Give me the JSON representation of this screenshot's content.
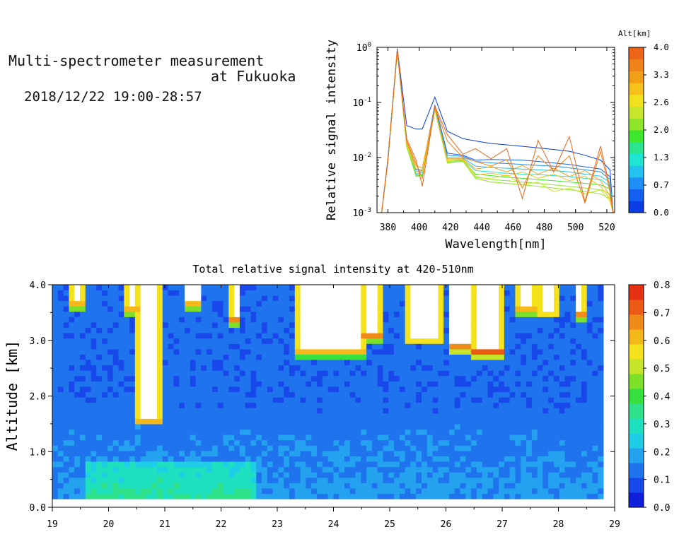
{
  "header": {
    "title_line1": "Multi-spectrometer measurement",
    "title_line2": "at Fukuoka",
    "subtitle": "2018/12/22 19:00-28:57"
  },
  "colors": {
    "alt_scale": [
      "#0a3de6",
      "#1460f0",
      "#1e90f5",
      "#22c3f0",
      "#1fe6d2",
      "#2be68f",
      "#3ee62c",
      "#8fe62a",
      "#c8e62d",
      "#f2e21e",
      "#f5c11a",
      "#f29f18",
      "#f0821a",
      "#ec6418"
    ],
    "intensity_scale": [
      "#1020d8",
      "#1848ea",
      "#1f74ee",
      "#24a2ef",
      "#1ecde6",
      "#1ee0be",
      "#2fe28a",
      "#36e03e",
      "#7fe02a",
      "#c5e52a",
      "#f3e21c",
      "#f5b81a",
      "#f08a18",
      "#ec5a16",
      "#e63012"
    ],
    "cloud": "#ffffff"
  },
  "chart_data": [
    {
      "type": "line",
      "scale": "log",
      "xlabel": "Wavelength[nm]",
      "ylabel": "Relative signal intensity",
      "xlim": [
        373,
        525
      ],
      "ylim": [
        0.001,
        1
      ],
      "x_ticks": [
        380,
        400,
        420,
        440,
        460,
        480,
        500,
        520
      ],
      "y_ticks": [
        {
          "value": 0.001,
          "base": "10",
          "exp": "-3"
        },
        {
          "value": 0.01,
          "base": "10",
          "exp": "-2"
        },
        {
          "value": 0.1,
          "base": "10",
          "exp": "-1"
        },
        {
          "value": 1,
          "base": "10",
          "exp": "0"
        }
      ],
      "x": [
        376,
        380,
        386,
        392,
        398,
        402,
        410,
        418,
        428,
        436,
        446,
        456,
        466,
        476,
        486,
        496,
        506,
        516,
        522,
        524
      ],
      "series": [
        {
          "alt": 0.0,
          "values": [
            0.001,
            0.01,
            0.95,
            0.038,
            0.033,
            0.033,
            0.125,
            0.03,
            0.022,
            0.02,
            0.018,
            0.017,
            0.016,
            0.015,
            0.014,
            0.013,
            0.011,
            0.009,
            0.006,
            0.001
          ]
        },
        {
          "alt": 0.3,
          "values": [
            0.001,
            0.009,
            0.92,
            0.02,
            0.006,
            0.006,
            0.09,
            0.012,
            0.011,
            0.009,
            0.0092,
            0.0091,
            0.009,
            0.0085,
            0.008,
            0.0075,
            0.0068,
            0.0062,
            0.0045,
            0.001
          ]
        },
        {
          "alt": 0.7,
          "values": [
            0.001,
            0.009,
            0.9,
            0.018,
            0.0055,
            0.0058,
            0.085,
            0.011,
            0.0105,
            0.0085,
            0.008,
            0.0078,
            0.0075,
            0.0072,
            0.007,
            0.0065,
            0.006,
            0.0055,
            0.004,
            0.001
          ]
        },
        {
          "alt": 1.0,
          "values": [
            0.001,
            0.009,
            0.88,
            0.017,
            0.005,
            0.0054,
            0.08,
            0.01,
            0.0098,
            0.007,
            0.0066,
            0.0064,
            0.0062,
            0.006,
            0.0058,
            0.0055,
            0.005,
            0.0046,
            0.0035,
            0.001
          ]
        },
        {
          "alt": 1.3,
          "values": [
            0.001,
            0.009,
            0.86,
            0.016,
            0.0048,
            0.005,
            0.076,
            0.009,
            0.009,
            0.0058,
            0.0055,
            0.0052,
            0.005,
            0.0049,
            0.0047,
            0.0045,
            0.0042,
            0.004,
            0.003,
            0.001
          ]
        },
        {
          "alt": 1.7,
          "values": [
            0.001,
            0.009,
            0.85,
            0.016,
            0.0046,
            0.0048,
            0.074,
            0.0085,
            0.0088,
            0.005,
            0.0047,
            0.0044,
            0.0042,
            0.004,
            0.0038,
            0.0036,
            0.0034,
            0.0032,
            0.0027,
            0.001
          ]
        },
        {
          "alt": 2.0,
          "values": [
            0.001,
            0.009,
            0.85,
            0.016,
            0.0045,
            0.0047,
            0.073,
            0.0082,
            0.0085,
            0.0045,
            0.004,
            0.0038,
            0.0036,
            0.0034,
            0.0032,
            0.003,
            0.0028,
            0.0026,
            0.0022,
            0.001
          ]
        },
        {
          "alt": 2.3,
          "values": [
            0.001,
            0.009,
            0.85,
            0.016,
            0.0046,
            0.0049,
            0.074,
            0.008,
            0.0085,
            0.0042,
            0.0036,
            0.0034,
            0.0032,
            0.003,
            0.0028,
            0.0026,
            0.0024,
            0.0022,
            0.0018,
            0.001
          ]
        },
        {
          "alt": 2.6,
          "values": [
            0.001,
            0.009,
            0.86,
            0.017,
            0.0055,
            0.0055,
            0.076,
            0.0085,
            0.009,
            0.0043,
            0.0042,
            0.0048,
            0.0032,
            0.0036,
            0.0024,
            0.0028,
            0.0022,
            0.0026,
            0.0016,
            0.001
          ]
        },
        {
          "alt": 3.0,
          "values": [
            0.001,
            0.009,
            0.87,
            0.018,
            0.0062,
            0.006,
            0.078,
            0.009,
            0.0092,
            0.0048,
            0.0052,
            0.0046,
            0.0055,
            0.0042,
            0.005,
            0.0038,
            0.0046,
            0.003,
            0.0018,
            0.001
          ]
        },
        {
          "alt": 3.3,
          "values": [
            0.001,
            0.009,
            0.88,
            0.019,
            0.007,
            0.0065,
            0.08,
            0.0095,
            0.0095,
            0.0062,
            0.0068,
            0.0055,
            0.0072,
            0.005,
            0.0064,
            0.0045,
            0.0058,
            0.0038,
            0.002,
            0.001
          ]
        },
        {
          "alt": 3.6,
          "values": [
            0.001,
            0.009,
            0.89,
            0.02,
            0.0078,
            0.0042,
            0.082,
            0.02,
            0.01,
            0.0085,
            0.007,
            0.0092,
            0.0028,
            0.0108,
            0.0058,
            0.0108,
            0.0015,
            0.0128,
            0.0024,
            0.001
          ]
        },
        {
          "alt": 4.0,
          "values": [
            0.001,
            0.009,
            0.9,
            0.022,
            0.009,
            0.003,
            0.085,
            0.026,
            0.0115,
            0.0145,
            0.0095,
            0.0145,
            0.0018,
            0.0205,
            0.0055,
            0.024,
            0.0016,
            0.0162,
            0.0028,
            0.001
          ]
        }
      ]
    },
    {
      "type": "heatmap",
      "title": "Total relative signal intensity at 420-510nm",
      "ylabel": "Altitude [km]",
      "xlim": [
        19,
        29
      ],
      "ylim": [
        0,
        4
      ],
      "x_ticks": [
        19,
        20,
        21,
        22,
        23,
        24,
        25,
        26,
        27,
        28,
        29
      ],
      "y_ticks": [
        "0.0",
        "1.0",
        "2.0",
        "3.0",
        "4.0"
      ],
      "y_tick_values": [
        0,
        1,
        2,
        3,
        4
      ],
      "data_x_range": [
        19.0,
        28.8
      ],
      "data_y_range": [
        0.15,
        4.0
      ],
      "color_range": [
        0,
        0.8
      ],
      "background_level": 0.12,
      "surface_layer": {
        "alt_top": 0.18,
        "value": 0.62
      },
      "green_region": {
        "x": [
          19.6,
          22.6
        ],
        "alt_top": 0.85,
        "value": 0.35
      },
      "cloud_bases": [
        {
          "x_start": 19.4,
          "x_end": 19.5,
          "base_alt": 3.7
        },
        {
          "x_start": 20.35,
          "x_end": 20.45,
          "base_alt": 3.6
        },
        {
          "x_start": 20.55,
          "x_end": 20.9,
          "base_alt": 1.6
        },
        {
          "x_start": 21.4,
          "x_end": 21.6,
          "base_alt": 3.7
        },
        {
          "x_start": 22.2,
          "x_end": 22.3,
          "base_alt": 3.4
        },
        {
          "x_start": 23.4,
          "x_end": 24.5,
          "base_alt": 2.85
        },
        {
          "x_start": 24.55,
          "x_end": 24.8,
          "base_alt": 3.1
        },
        {
          "x_start": 25.4,
          "x_end": 25.9,
          "base_alt": 3.05
        },
        {
          "x_start": 26.1,
          "x_end": 26.4,
          "base_alt": 2.9
        },
        {
          "x_start": 26.5,
          "x_end": 26.95,
          "base_alt": 2.8
        },
        {
          "x_start": 27.3,
          "x_end": 27.55,
          "base_alt": 3.6
        },
        {
          "x_start": 27.7,
          "x_end": 27.9,
          "base_alt": 3.55
        },
        {
          "x_start": 28.35,
          "x_end": 28.45,
          "base_alt": 3.5
        }
      ],
      "colorbar_ticks": [
        "0.0",
        "0.1",
        "0.2",
        "0.3",
        "0.4",
        "0.5",
        "0.6",
        "0.7",
        "0.8"
      ]
    }
  ],
  "colorbar_alt": {
    "title": "Alt[km]",
    "ticks": [
      "0.0",
      "0.7",
      "1.3",
      "2.0",
      "2.6",
      "3.3",
      "4.0"
    ]
  }
}
